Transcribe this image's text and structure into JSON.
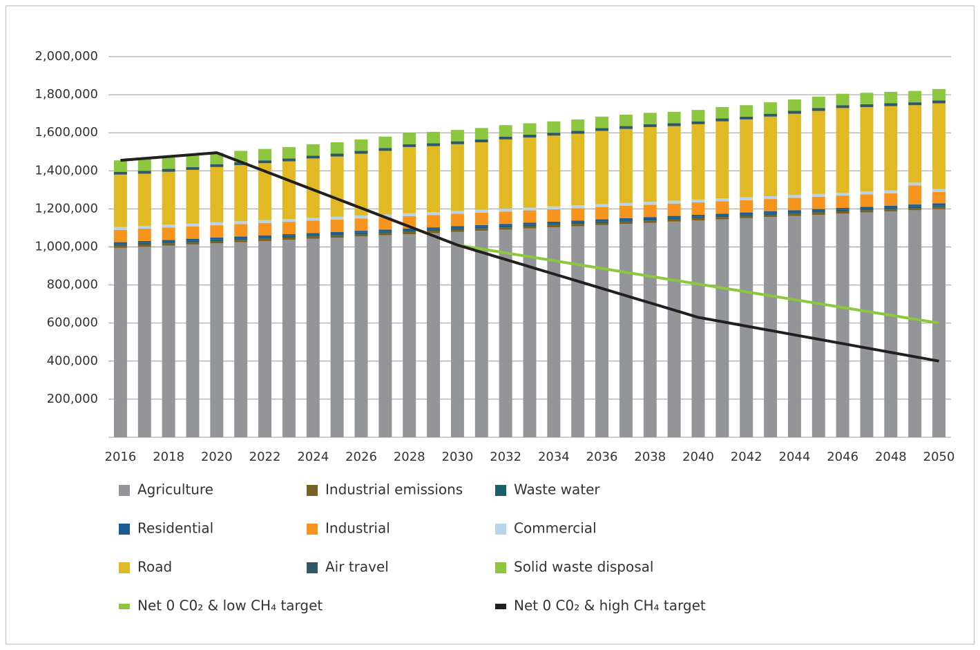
{
  "chart_data": {
    "type": "bar",
    "stacked": true,
    "categories": [
      "2016",
      null,
      "2018",
      null,
      "2020",
      null,
      "2022",
      null,
      "2024",
      null,
      "2026",
      null,
      "2028",
      null,
      "2030",
      null,
      "2032",
      null,
      "2034",
      null,
      "2036",
      null,
      "2038",
      null,
      "2040",
      null,
      "2042",
      null,
      "2044",
      null,
      "2046",
      null,
      "2048",
      null,
      "2050"
    ],
    "ylim": [
      0,
      2000000
    ],
    "yticks": [
      {
        "value": 200000,
        "label": "200,000"
      },
      {
        "value": 400000,
        "label": "400,000"
      },
      {
        "value": 600000,
        "label": "600,000"
      },
      {
        "value": 800000,
        "label": "800,000"
      },
      {
        "value": 1000000,
        "label": "1,000,000"
      },
      {
        "value": 1200000,
        "label": "1,200,000"
      },
      {
        "value": 1400000,
        "label": "1,400,000"
      },
      {
        "value": 1600000,
        "label": "1,600,000"
      },
      {
        "value": 1800000,
        "label": "1,800,000"
      },
      {
        "value": 2000000,
        "label": "2,000,000"
      }
    ],
    "grid": true,
    "series": [
      {
        "name": "Agriculture",
        "type": "bar",
        "color": "#939598",
        "values": [
          995000,
          1001000,
          1007000,
          1013000,
          1019000,
          1025000,
          1031000,
          1037000,
          1043000,
          1049000,
          1055000,
          1061000,
          1067000,
          1073000,
          1079000,
          1085000,
          1091000,
          1097000,
          1103000,
          1109000,
          1115000,
          1121000,
          1127000,
          1133000,
          1139000,
          1145000,
          1151000,
          1157000,
          1163000,
          1169000,
          1175000,
          1181000,
          1187000,
          1193000,
          1199000
        ]
      },
      {
        "name": "Industrial emissions",
        "type": "bar",
        "color": "#7a6024",
        "values": [
          12000,
          12000,
          12000,
          12000,
          12000,
          12000,
          12000,
          12000,
          12000,
          12000,
          12000,
          12000,
          12000,
          12000,
          12000,
          12000,
          12000,
          12000,
          12000,
          12000,
          12000,
          12000,
          12000,
          12000,
          12000,
          12000,
          12000,
          12000,
          12000,
          12000,
          12000,
          12000,
          12000,
          12000,
          12000
        ]
      },
      {
        "name": "Waste water",
        "type": "bar",
        "color": "#1a5f6e",
        "values": [
          8000,
          8000,
          8000,
          8000,
          8000,
          8000,
          8000,
          8000,
          8000,
          8000,
          8000,
          8000,
          8000,
          8000,
          8000,
          8000,
          8000,
          8000,
          8000,
          8000,
          8000,
          8000,
          8000,
          8000,
          8000,
          8000,
          8000,
          8000,
          8000,
          8000,
          8000,
          8000,
          8000,
          8000,
          8000
        ]
      },
      {
        "name": "Residential",
        "type": "bar",
        "color": "#1e5a96",
        "values": [
          10000,
          10000,
          10000,
          10000,
          10000,
          10000,
          10000,
          10000,
          10000,
          10000,
          10000,
          10000,
          10000,
          10000,
          10000,
          10000,
          10000,
          10000,
          10000,
          10000,
          10000,
          10000,
          10000,
          10000,
          10000,
          10000,
          10000,
          10000,
          10000,
          10000,
          10000,
          10000,
          10000,
          10000,
          10000
        ]
      },
      {
        "name": "Industrial",
        "type": "bar",
        "color": "#f7941d",
        "values": [
          65000,
          65000,
          65000,
          65000,
          65000,
          65000,
          65000,
          65000,
          65000,
          65000,
          65000,
          65000,
          65000,
          65000,
          65000,
          65000,
          65000,
          65000,
          65000,
          65000,
          65000,
          65000,
          65000,
          65000,
          65000,
          65000,
          65000,
          65000,
          65000,
          65000,
          65000,
          65000,
          65000,
          100000,
          60000
        ]
      },
      {
        "name": "Commercial",
        "type": "bar",
        "color": "#b8d4ea",
        "values": [
          15000,
          15000,
          15000,
          15000,
          15000,
          15000,
          15000,
          15000,
          15000,
          15000,
          15000,
          15000,
          15000,
          15000,
          15000,
          15000,
          15000,
          15000,
          15000,
          15000,
          15000,
          15000,
          15000,
          15000,
          15000,
          15000,
          15000,
          15000,
          15000,
          15000,
          15000,
          15000,
          15000,
          15000,
          15000
        ]
      },
      {
        "name": "Road",
        "type": "bar",
        "color": "#e0b924",
        "values": [
          275000,
          274000,
          278000,
          282000,
          291000,
          295000,
          299000,
          303000,
          312000,
          316000,
          325000,
          334000,
          348000,
          347000,
          351000,
          355000,
          364000,
          368000,
          372000,
          376000,
          385000,
          389000,
          393000,
          392000,
          396000,
          405000,
          409000,
          418000,
          427000,
          436000,
          445000,
          444000,
          443000,
          407000,
          451000
        ]
      },
      {
        "name": "Air travel",
        "type": "bar",
        "color": "#2f5966",
        "values": [
          15000,
          15000,
          15000,
          15000,
          15000,
          15000,
          15000,
          15000,
          15000,
          15000,
          15000,
          15000,
          15000,
          15000,
          15000,
          15000,
          15000,
          15000,
          15000,
          15000,
          15000,
          15000,
          15000,
          15000,
          15000,
          15000,
          15000,
          15000,
          15000,
          15000,
          15000,
          15000,
          15000,
          15000,
          15000
        ]
      },
      {
        "name": "Solid waste disposal",
        "type": "bar",
        "color": "#8dc63f",
        "values": [
          60000,
          60000,
          60000,
          60000,
          60000,
          60000,
          60000,
          60000,
          60000,
          60000,
          60000,
          60000,
          60000,
          60000,
          60000,
          60000,
          60000,
          60000,
          60000,
          60000,
          60000,
          60000,
          60000,
          60000,
          60000,
          60000,
          60000,
          60000,
          60000,
          60000,
          60000,
          60000,
          60000,
          60000,
          60000
        ]
      },
      {
        "name": "Net 0 C0₂ & low CH₄ target",
        "type": "line",
        "color": "#8dc63f",
        "values": [
          1455000,
          1465000,
          1475000,
          1485000,
          1495000,
          1446500,
          1398000,
          1349500,
          1301000,
          1252500,
          1204000,
          1155500,
          1107000,
          1058500,
          1010000,
          989500,
          969000,
          948500,
          928000,
          907500,
          887000,
          866500,
          846000,
          825500,
          805000,
          784500,
          764000,
          743500,
          723000,
          702500,
          682000,
          661500,
          641000,
          620500,
          600000
        ]
      },
      {
        "name": "Net 0 C0₂ & high CH₄ target",
        "type": "line",
        "color": "#231f20",
        "values": [
          1455000,
          1465000,
          1475000,
          1485000,
          1495000,
          1446500,
          1398000,
          1349500,
          1301000,
          1252500,
          1204000,
          1155500,
          1107000,
          1058500,
          1010000,
          972000,
          934000,
          896000,
          858000,
          820000,
          782000,
          744000,
          706000,
          668000,
          630000,
          607000,
          584000,
          561000,
          538000,
          515000,
          492000,
          469000,
          446000,
          423000,
          400000
        ]
      }
    ]
  }
}
